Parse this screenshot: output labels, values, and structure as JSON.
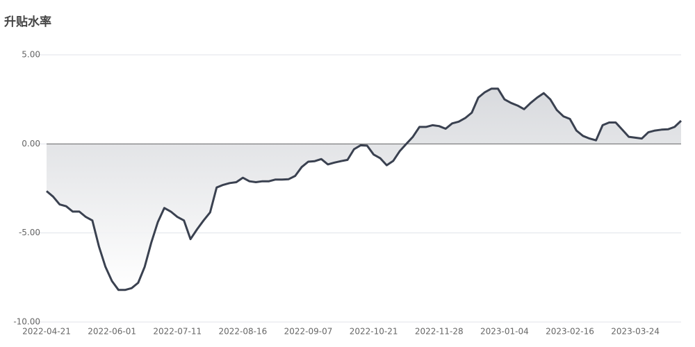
{
  "chart_data": {
    "type": "area-line",
    "title": "升贴水率",
    "categories": [
      "2022-04-21",
      null,
      null,
      null,
      null,
      null,
      null,
      null,
      null,
      null,
      "2022-06-01",
      null,
      null,
      null,
      null,
      null,
      null,
      null,
      null,
      null,
      "2022-07-11",
      null,
      null,
      null,
      null,
      null,
      null,
      null,
      null,
      null,
      "2022-08-16",
      null,
      null,
      null,
      null,
      null,
      null,
      null,
      null,
      null,
      "2022-09-07",
      null,
      null,
      null,
      null,
      null,
      null,
      null,
      null,
      null,
      "2022-10-21",
      null,
      null,
      null,
      null,
      null,
      null,
      null,
      null,
      null,
      "2022-11-28",
      null,
      null,
      null,
      null,
      null,
      null,
      null,
      null,
      null,
      "2023-01-04",
      null,
      null,
      null,
      null,
      null,
      null,
      null,
      null,
      null,
      "2023-02-16",
      null,
      null,
      null,
      null,
      null,
      null,
      null,
      null,
      null,
      "2023-03-24",
      null,
      null,
      null,
      null,
      null,
      null,
      null
    ],
    "values": [
      -2.65,
      -2.96,
      -3.4,
      -3.5,
      -3.8,
      -3.8,
      -4.1,
      -4.3,
      -5.75,
      -6.9,
      -7.7,
      -8.2,
      -8.2,
      -8.1,
      -7.8,
      -6.9,
      -5.55,
      -4.4,
      -3.6,
      -3.8,
      -4.1,
      -4.3,
      -5.35,
      -4.8,
      -4.3,
      -3.85,
      -2.45,
      -2.3,
      -2.2,
      -2.15,
      -1.9,
      -2.1,
      -2.15,
      -2.1,
      -2.1,
      -2.0,
      -2.0,
      -1.98,
      -1.8,
      -1.3,
      -1.0,
      -0.97,
      -0.85,
      -1.15,
      -1.05,
      -0.97,
      -0.9,
      -0.3,
      -0.08,
      -0.1,
      -0.6,
      -0.8,
      -1.2,
      -0.95,
      -0.4,
      0.0,
      0.4,
      0.95,
      0.95,
      1.05,
      1.0,
      0.85,
      1.15,
      1.25,
      1.45,
      1.75,
      2.6,
      2.9,
      3.1,
      3.1,
      2.5,
      2.3,
      2.15,
      1.95,
      2.3,
      2.6,
      2.85,
      2.5,
      1.9,
      1.55,
      1.4,
      0.75,
      0.45,
      0.3,
      0.2,
      1.05,
      1.2,
      1.2,
      0.8,
      0.4,
      0.35,
      0.3,
      0.65,
      0.75,
      0.8,
      0.82,
      0.95,
      1.3
    ],
    "color": "#3a4150",
    "ylim": [
      -10,
      5
    ],
    "yticks": [
      {
        "value": -10,
        "label": "-10.00"
      },
      {
        "value": -5,
        "label": "-5.00"
      },
      {
        "value": 0,
        "label": "0.00"
      },
      {
        "value": 5,
        "label": "5.00"
      }
    ],
    "grid": true
  }
}
